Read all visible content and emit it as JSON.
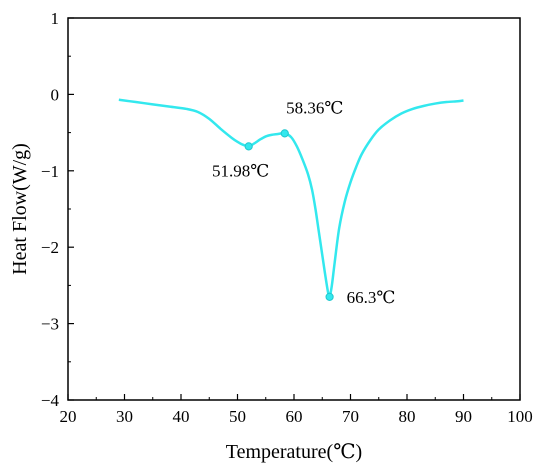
{
  "chart_data": {
    "type": "line",
    "xlabel": "Temperature(℃)",
    "ylabel": "Heat Flow(W/g)",
    "xlim": [
      20,
      100
    ],
    "ylim": [
      -4,
      1
    ],
    "x_ticks": [
      20,
      30,
      40,
      50,
      60,
      70,
      80,
      90,
      100
    ],
    "y_ticks": [
      1,
      0,
      -1,
      -2,
      -3,
      -4
    ],
    "grid": false,
    "series_color": "#33e8ee",
    "series": [
      {
        "x": [
          29,
          32,
          35,
          38,
          41,
          43,
          45,
          47,
          49,
          50,
          51,
          51.98,
          53,
          54,
          55,
          56,
          57,
          58.36,
          59.5,
          60.5,
          61.5,
          62.5,
          63.2,
          63.8,
          64.4,
          65,
          65.5,
          66,
          66.3,
          66.7,
          67.2,
          68,
          69,
          70,
          71,
          72,
          73.5,
          75,
          77,
          79,
          81,
          83,
          85,
          87,
          89,
          90
        ],
        "y": [
          -0.07,
          -0.1,
          -0.13,
          -0.16,
          -0.19,
          -0.23,
          -0.32,
          -0.45,
          -0.57,
          -0.62,
          -0.66,
          -0.68,
          -0.64,
          -0.59,
          -0.55,
          -0.53,
          -0.52,
          -0.51,
          -0.56,
          -0.68,
          -0.85,
          -1.05,
          -1.25,
          -1.5,
          -1.8,
          -2.1,
          -2.35,
          -2.58,
          -2.65,
          -2.5,
          -2.2,
          -1.75,
          -1.4,
          -1.15,
          -0.95,
          -0.78,
          -0.6,
          -0.46,
          -0.34,
          -0.25,
          -0.19,
          -0.15,
          -0.12,
          -0.1,
          -0.09,
          -0.08
        ]
      }
    ],
    "annotations": [
      {
        "label": "51.98℃",
        "x": 51.98,
        "y": -0.68,
        "anchor": "below"
      },
      {
        "label": "58.36℃",
        "x": 58.36,
        "y": -0.51,
        "anchor": "above"
      },
      {
        "label": "66.3℃",
        "x": 66.3,
        "y": -2.65,
        "anchor": "right"
      }
    ]
  }
}
